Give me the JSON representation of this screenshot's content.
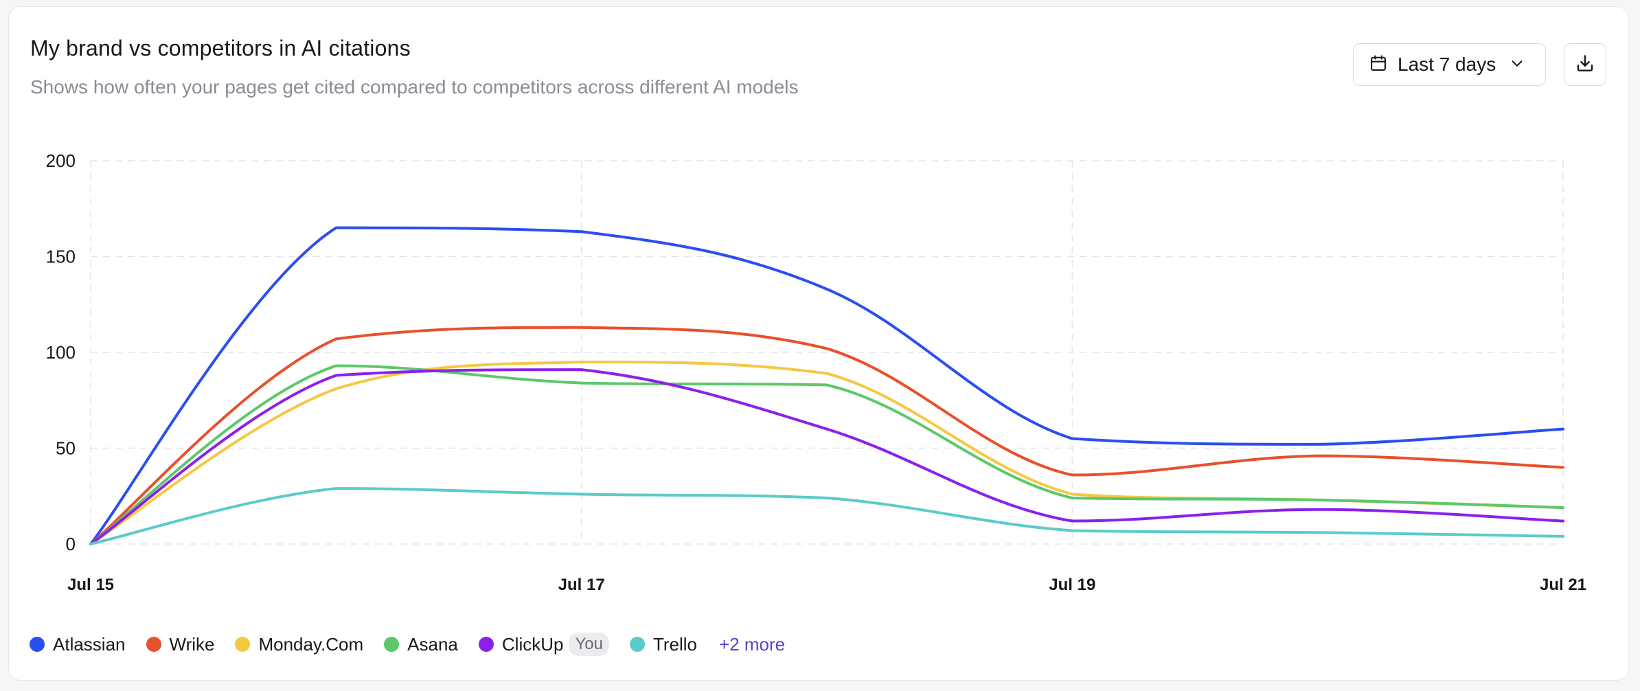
{
  "card": {
    "title": "My brand vs competitors in AI citations",
    "subtitle": "Shows how often your pages get cited compared to competitors across different AI models"
  },
  "date_range": {
    "label": "Last 7 days",
    "icon": "calendar-icon",
    "chevron": "chevron-down-icon"
  },
  "download": {
    "icon": "download-icon"
  },
  "legend": {
    "you_label": "You",
    "more_label": "+2 more"
  },
  "chart_data": {
    "type": "line",
    "title": "",
    "xlabel": "",
    "ylabel": "",
    "x": [
      "Jul 15",
      "Jul 16",
      "Jul 17",
      "Jul 18",
      "Jul 19",
      "Jul 20",
      "Jul 21"
    ],
    "x_ticks": [
      "Jul 15",
      "Jul 17",
      "Jul 19",
      "Jul 21"
    ],
    "y_ticks": [
      0,
      50,
      100,
      150,
      200
    ],
    "ylim": [
      0,
      200
    ],
    "grid": true,
    "legend_position": "bottom-left",
    "series": [
      {
        "name": "Atlassian",
        "color": "#2b4ef0",
        "values": [
          0,
          165,
          163,
          133,
          55,
          52,
          60
        ]
      },
      {
        "name": "Wrike",
        "color": "#e9502c",
        "values": [
          0,
          107,
          113,
          102,
          36,
          46,
          40
        ]
      },
      {
        "name": "Monday.Com",
        "color": "#f5c842",
        "values": [
          0,
          81,
          95,
          89,
          26,
          23,
          19
        ]
      },
      {
        "name": "Asana",
        "color": "#5cc86a",
        "values": [
          0,
          93,
          84,
          83,
          24,
          23,
          19
        ]
      },
      {
        "name": "ClickUp",
        "color": "#8b20ec",
        "values": [
          0,
          88,
          91,
          60,
          12,
          18,
          12
        ],
        "you": true
      },
      {
        "name": "Trello",
        "color": "#5ccaca",
        "values": [
          0,
          29,
          26,
          24,
          7,
          6,
          4
        ]
      }
    ]
  }
}
